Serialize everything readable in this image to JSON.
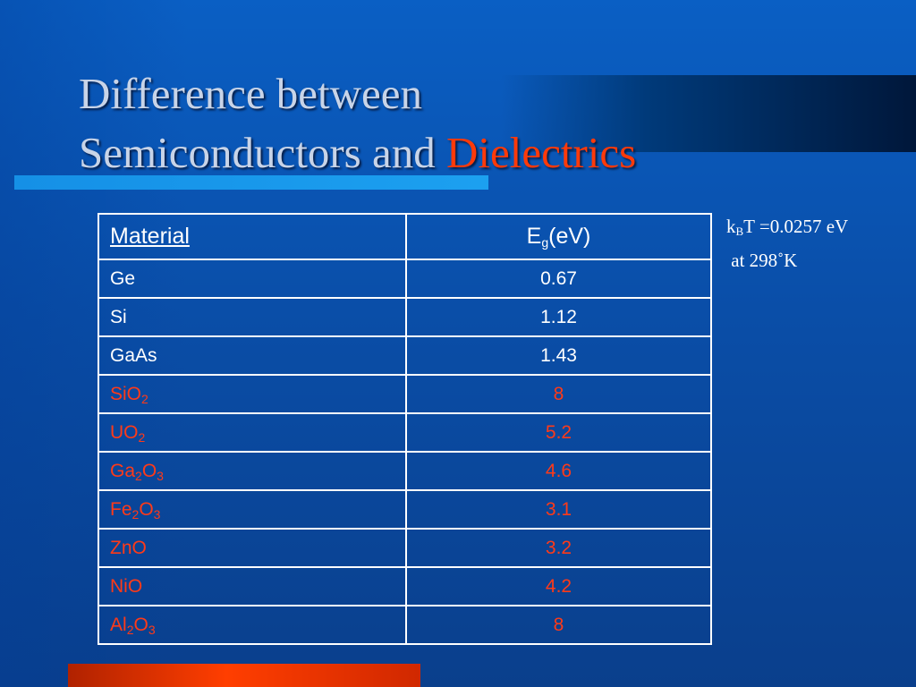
{
  "title": {
    "line1": "Difference between",
    "line2": "Semiconductors and ",
    "accent": "Dielectrics"
  },
  "note": {
    "k": "k",
    "k_sub": "B",
    "k_rest": "T =0.0257 eV",
    "line2": "at 298˚K"
  },
  "table": {
    "header": {
      "material": "Material",
      "eg_main": "E",
      "eg_sub": "g",
      "eg_unit": "(eV)"
    },
    "rows": [
      {
        "parts": [
          "Ge"
        ],
        "value": "0.67"
      },
      {
        "parts": [
          "Si"
        ],
        "value": "1.12"
      },
      {
        "parts": [
          "GaAs"
        ],
        "value": "1.43"
      },
      {
        "parts": [
          "SiO",
          "2"
        ],
        "value": "8"
      },
      {
        "parts": [
          "UO",
          "2"
        ],
        "value": "5.2"
      },
      {
        "parts": [
          "Ga",
          "2",
          "O",
          "3"
        ],
        "value": "4.6"
      },
      {
        "parts": [
          "Fe",
          "2",
          "O",
          "3"
        ],
        "value": "3.1"
      },
      {
        "parts": [
          "ZnO"
        ],
        "value": "3.2"
      },
      {
        "parts": [
          "NiO"
        ],
        "value": "4.2"
      },
      {
        "parts": [
          "Al",
          "2",
          "O",
          "3"
        ],
        "value": "8"
      }
    ]
  },
  "colors": {
    "semiconductor_text": "#ffffff",
    "dielectric_text": "#ff3a18",
    "accent": "#ff3a0a"
  }
}
